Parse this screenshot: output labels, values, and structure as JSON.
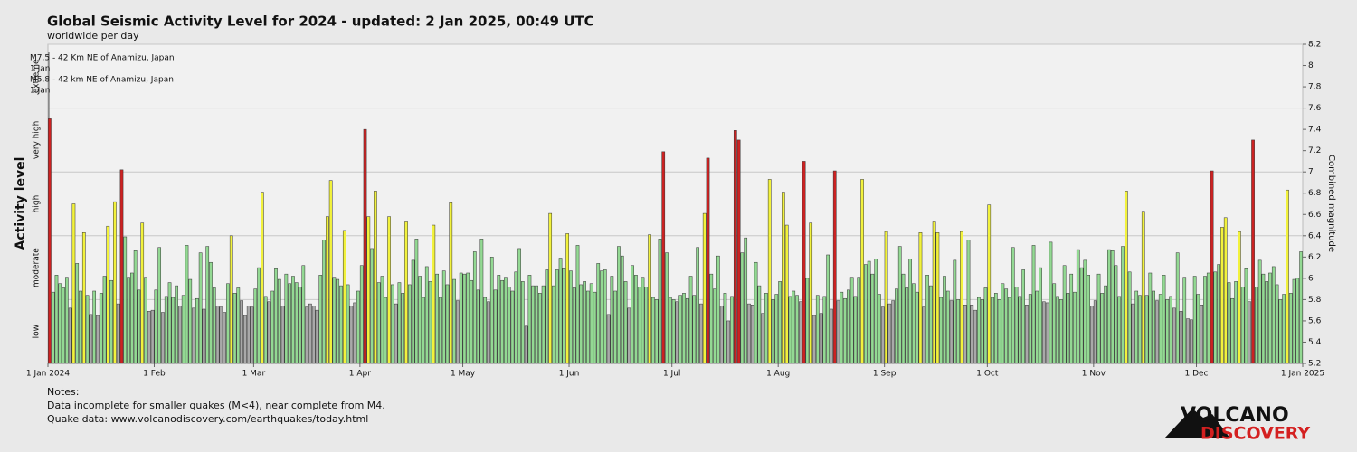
{
  "chart_data": {
    "type": "bar",
    "title": "Global Seismic Activity Level for 2024 - updated:  2 Jan 2025, 00:49 UTC",
    "subtitle": "worldwide per day",
    "y_label": "Activity level",
    "y2_label": "Combined magnitude",
    "ylim": [
      5.2,
      8.2
    ],
    "yticks": [
      5.2,
      5.4,
      5.6,
      5.8,
      6,
      6.2,
      6.4,
      6.6,
      6.8,
      7,
      7.2,
      7.4,
      7.6,
      7.8,
      8,
      8.2
    ],
    "levels": [
      "low",
      "moderate",
      "high",
      "very high",
      "extreme"
    ],
    "level_bounds": [
      5.2,
      5.8,
      6.4,
      7.0,
      7.6,
      8.2
    ],
    "level_colors": [
      "#a9a9a9",
      "#93d993",
      "#f2f23c",
      "#cc2222",
      "#cc2222"
    ],
    "grid": true,
    "xlim": [
      0,
      366
    ],
    "xticks": [
      {
        "value": 0,
        "label": "1 Jan 2024"
      },
      {
        "value": 31,
        "label": "1 Feb"
      },
      {
        "value": 60,
        "label": "1 Mar"
      },
      {
        "value": 91,
        "label": "1 Apr"
      },
      {
        "value": 121,
        "label": "1 May"
      },
      {
        "value": 152,
        "label": "1 Jun"
      },
      {
        "value": 182,
        "label": "1 Jul"
      },
      {
        "value": 213,
        "label": "1 Aug"
      },
      {
        "value": 244,
        "label": "1 Sep"
      },
      {
        "value": 274,
        "label": "1 Oct"
      },
      {
        "value": 305,
        "label": "1 Nov"
      },
      {
        "value": 335,
        "label": "1 Dec"
      },
      {
        "value": 366,
        "label": "1 Jan 2025"
      }
    ],
    "annotations": [
      {
        "text": "M7.5 - 42 Km NE of Anamizu, Japan",
        "date": "1 Jan"
      },
      {
        "text": "M5.8 - 42 km NE of Anamizu, Japan",
        "date": "1 Jan"
      }
    ],
    "values": [
      7.5,
      5.87,
      6.03,
      5.95,
      5.91,
      6.01,
      5.72,
      6.7,
      6.14,
      5.88,
      6.43,
      5.84,
      5.66,
      5.88,
      5.65,
      5.86,
      6.02,
      6.49,
      5.98,
      6.72,
      5.76,
      7.02,
      6.39,
      6.01,
      6.05,
      6.26,
      5.89,
      6.52,
      6.01,
      5.69,
      5.7,
      5.89,
      6.29,
      5.68,
      5.83,
      5.96,
      5.82,
      5.93,
      5.74,
      5.84,
      6.31,
      5.99,
      5.72,
      5.81,
      6.24,
      5.71,
      6.3,
      6.15,
      5.91,
      5.74,
      5.73,
      5.68,
      5.95,
      6.4,
      5.86,
      5.91,
      5.79,
      5.65,
      5.74,
      5.73,
      5.9,
      6.1,
      6.81,
      5.83,
      5.78,
      5.88,
      6.09,
      5.99,
      5.74,
      6.04,
      5.95,
      6.02,
      5.96,
      5.92,
      6.12,
      5.73,
      5.76,
      5.74,
      5.7,
      6.03,
      6.36,
      6.58,
      6.92,
      6.01,
      5.99,
      5.93,
      6.45,
      5.94,
      5.74,
      5.77,
      5.88,
      6.12,
      7.4,
      6.58,
      6.28,
      6.82,
      5.96,
      6.02,
      5.82,
      6.58,
      5.94,
      5.76,
      5.96,
      5.86,
      6.53,
      5.94,
      6.17,
      6.37,
      6.02,
      5.82,
      6.11,
      5.97,
      6.5,
      6.04,
      5.82,
      6.07,
      5.94,
      6.71,
      5.99,
      5.79,
      6.05,
      6.04,
      6.05,
      5.98,
      6.25,
      5.89,
      6.37,
      5.82,
      5.78,
      6.2,
      5.89,
      6.03,
      5.98,
      6.01,
      5.92,
      5.88,
      6.06,
      6.28,
      5.97,
      5.55,
      6.03,
      5.93,
      5.93,
      5.86,
      5.93,
      6.08,
      6.61,
      5.93,
      6.08,
      6.19,
      6.09,
      6.42,
      6.07,
      5.91,
      6.31,
      5.94,
      5.97,
      5.88,
      5.95,
      5.87,
      6.14,
      6.07,
      6.08,
      5.66,
      6.02,
      5.88,
      6.3,
      6.21,
      5.97,
      5.72,
      6.12,
      6.03,
      5.92,
      6.01,
      5.92,
      6.41,
      5.82,
      5.8,
      6.37,
      7.19,
      6.24,
      5.82,
      5.8,
      5.78,
      5.84,
      5.86,
      5.81,
      6.02,
      5.84,
      6.29,
      5.76,
      6.61,
      7.13,
      6.04,
      5.9,
      6.21,
      5.74,
      5.86,
      5.6,
      5.83,
      7.39,
      7.3,
      6.24,
      6.38,
      5.76,
      5.75,
      6.15,
      5.93,
      5.67,
      5.86,
      6.93,
      5.8,
      5.85,
      5.97,
      6.81,
      6.5,
      5.83,
      5.88,
      5.84,
      5.78,
      7.1,
      6.0,
      6.52,
      5.65,
      5.84,
      5.67,
      5.83,
      6.22,
      5.71,
      7.01,
      5.79,
      5.87,
      5.81,
      5.89,
      6.01,
      5.83,
      6.01,
      6.93,
      6.13,
      6.16,
      6.04,
      6.18,
      5.85,
      5.73,
      6.44,
      5.76,
      5.79,
      5.9,
      6.3,
      6.04,
      5.91,
      6.18,
      5.95,
      5.87,
      6.43,
      5.73,
      6.03,
      5.93,
      6.53,
      6.43,
      5.82,
      6.02,
      5.88,
      5.79,
      6.17,
      5.8,
      6.44,
      5.75,
      6.36,
      5.75,
      5.7,
      5.82,
      5.8,
      5.91,
      6.69,
      5.82,
      5.86,
      5.8,
      5.95,
      5.9,
      5.82,
      6.29,
      5.92,
      5.83,
      6.08,
      5.75,
      5.85,
      6.31,
      5.88,
      6.1,
      5.78,
      5.77,
      6.34,
      5.95,
      5.83,
      5.8,
      6.12,
      5.86,
      6.04,
      5.87,
      6.27,
      6.1,
      6.17,
      6.03,
      5.74,
      5.79,
      6.04,
      5.86,
      5.93,
      6.27,
      6.26,
      6.12,
      5.83,
      6.3,
      6.82,
      6.06,
      5.76,
      5.88,
      5.84,
      6.63,
      5.84,
      6.05,
      5.88,
      5.79,
      5.85,
      6.03,
      5.8,
      5.83,
      5.72,
      6.24,
      5.69,
      6.01,
      5.62,
      5.61,
      6.02,
      5.85,
      5.75,
      6.02,
      6.05,
      7.01,
      6.06,
      6.13,
      6.48,
      6.57,
      5.96,
      5.81,
      5.97,
      6.44,
      5.92,
      6.09,
      5.78,
      7.3,
      5.92,
      6.17,
      6.04,
      5.97,
      6.05,
      6.11,
      5.94,
      5.8,
      5.85,
      6.83,
      5.86,
      5.99,
      6.0,
      6.25
    ],
    "notes": [
      "Notes:",
      "Data incomplete for smaller quakes (M<4), near complete from M4.",
      "Quake data: www.volcanodiscovery.com/earthquakes/today.html"
    ],
    "logo": [
      "VOLCANO",
      "DISCOVERY"
    ]
  }
}
